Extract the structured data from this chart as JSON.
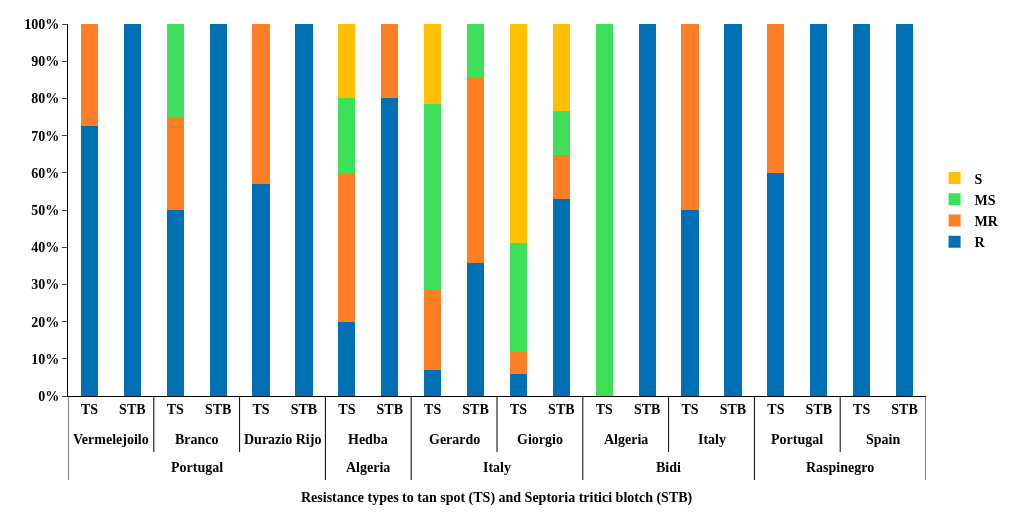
{
  "chart_data": {
    "type": "bar",
    "stacked": true,
    "annotations": [
      "Vermelejoilo",
      "Branco",
      "Durazio Rijo",
      "Hedba",
      "Gerardo",
      "Giorgio",
      "Algeria",
      "Italy",
      "Portugal",
      "Spain",
      "Portugal",
      "Algeria",
      "Italy",
      "Bidi",
      "Raspinegro",
      "Resistance types to tan spot (TS) and Septoria tritici blotch (STB)"
    ],
    "categories": [
      "TS",
      "STB",
      "TS",
      "STB",
      "TS",
      "STB",
      "TS",
      "STB",
      "TS",
      "STB",
      "TS",
      "STB",
      "TS",
      "STB",
      "TS",
      "STB",
      "TS",
      "STB",
      "TS",
      "STB"
    ],
    "series": [
      {
        "name": "R",
        "color": "#0070b5",
        "values": [
          72.7,
          100,
          50,
          100,
          57.1,
          100,
          20,
          80,
          7.1,
          35.7,
          5.9,
          52.9,
          0,
          100,
          50,
          100,
          60,
          100,
          100,
          100
        ]
      },
      {
        "name": "MR",
        "color": "#ff7f27",
        "values": [
          27.3,
          0,
          25,
          0,
          42.9,
          0,
          40,
          20,
          21.4,
          50,
          5.9,
          11.8,
          0,
          0,
          50,
          0,
          40,
          0,
          0,
          0
        ]
      },
      {
        "name": "MS",
        "color": "#3ee05a",
        "values": [
          0,
          0,
          25,
          0,
          0,
          0,
          20,
          0,
          50,
          14.3,
          29.4,
          11.8,
          100,
          0,
          0,
          0,
          0,
          0,
          0,
          0
        ]
      },
      {
        "name": "S",
        "color": "#ffc000",
        "values": [
          0,
          0,
          0,
          0,
          0,
          0,
          20,
          0,
          21.4,
          0,
          58.8,
          23.5,
          0,
          0,
          0,
          0,
          0,
          0,
          0,
          0
        ]
      }
    ],
    "ylim": [
      0,
      100
    ],
    "yticks": [
      {
        "value": 0,
        "label": "0%"
      },
      {
        "value": 10,
        "label": "10%"
      },
      {
        "value": 20,
        "label": "20%"
      },
      {
        "value": 30,
        "label": "30%"
      },
      {
        "value": 40,
        "label": "40%"
      },
      {
        "value": 50,
        "label": "50%"
      },
      {
        "value": 60,
        "label": "60%"
      },
      {
        "value": 70,
        "label": "70%"
      },
      {
        "value": 80,
        "label": "80%"
      },
      {
        "value": 90,
        "label": "90%"
      },
      {
        "value": 100,
        "label": "100%"
      }
    ],
    "legend": "right"
  }
}
